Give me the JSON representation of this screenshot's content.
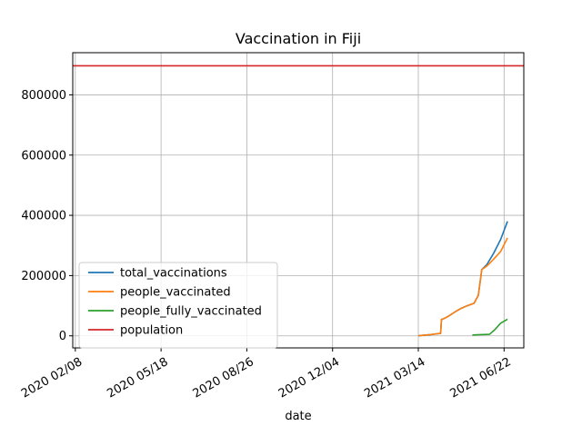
{
  "chart_data": {
    "type": "line",
    "title": "Vaccination in Fiji",
    "xlabel": "date",
    "ylabel": "",
    "x_axis": "date",
    "xlim": [
      "2020-02-05",
      "2021-07-15"
    ],
    "ylim": [
      -40000,
      940000
    ],
    "x_ticks": [
      "2020-02-08",
      "2020-05-18",
      "2020-08-26",
      "2020-12-04",
      "2021-03-14",
      "2021-06-22"
    ],
    "x_tick_labels": [
      "2020 02/08",
      "2020 05/18",
      "2020 08/26",
      "2020 12/04",
      "2021 03/14",
      "2021 06/22"
    ],
    "y_ticks": [
      0,
      200000,
      400000,
      600000,
      800000
    ],
    "y_tick_labels": [
      "0",
      "200000",
      "400000",
      "600000",
      "800000"
    ],
    "grid": true,
    "legend_position": "lower-left",
    "series": [
      {
        "name": "total_vaccinations",
        "color": "#1f77b4",
        "points": [
          [
            "2021-03-14",
            0
          ],
          [
            "2021-03-20",
            2000
          ],
          [
            "2021-03-28",
            4000
          ],
          [
            "2021-04-05",
            7000
          ],
          [
            "2021-04-09",
            8000
          ],
          [
            "2021-04-10",
            55000
          ],
          [
            "2021-04-12",
            56000
          ],
          [
            "2021-04-18",
            65000
          ],
          [
            "2021-04-25",
            78000
          ],
          [
            "2021-05-02",
            90000
          ],
          [
            "2021-05-10",
            100000
          ],
          [
            "2021-05-18",
            108000
          ],
          [
            "2021-05-23",
            135000
          ],
          [
            "2021-05-27",
            220000
          ],
          [
            "2021-06-02",
            237000
          ],
          [
            "2021-06-10",
            275000
          ],
          [
            "2021-06-18",
            320000
          ],
          [
            "2021-06-26",
            380000
          ]
        ]
      },
      {
        "name": "people_vaccinated",
        "color": "#ff7f0e",
        "points": [
          [
            "2021-03-14",
            0
          ],
          [
            "2021-03-20",
            2000
          ],
          [
            "2021-03-28",
            4000
          ],
          [
            "2021-04-05",
            7000
          ],
          [
            "2021-04-09",
            8000
          ],
          [
            "2021-04-10",
            55000
          ],
          [
            "2021-04-12",
            56000
          ],
          [
            "2021-04-18",
            65000
          ],
          [
            "2021-04-25",
            78000
          ],
          [
            "2021-05-02",
            90000
          ],
          [
            "2021-05-10",
            100000
          ],
          [
            "2021-05-18",
            108000
          ],
          [
            "2021-05-23",
            135000
          ],
          [
            "2021-05-27",
            220000
          ],
          [
            "2021-06-02",
            232000
          ],
          [
            "2021-06-10",
            255000
          ],
          [
            "2021-06-18",
            280000
          ],
          [
            "2021-06-26",
            325000
          ]
        ]
      },
      {
        "name": "people_fully_vaccinated",
        "color": "#2ca02c",
        "points": [
          [
            "2021-05-16",
            3000
          ],
          [
            "2021-05-25",
            4000
          ],
          [
            "2021-06-05",
            5000
          ],
          [
            "2021-06-11",
            20000
          ],
          [
            "2021-06-18",
            42000
          ],
          [
            "2021-06-26",
            55000
          ]
        ]
      },
      {
        "name": "population",
        "color": "#d62728",
        "points": [
          [
            "2020-02-05",
            896444
          ],
          [
            "2021-07-15",
            896444
          ]
        ]
      }
    ]
  }
}
